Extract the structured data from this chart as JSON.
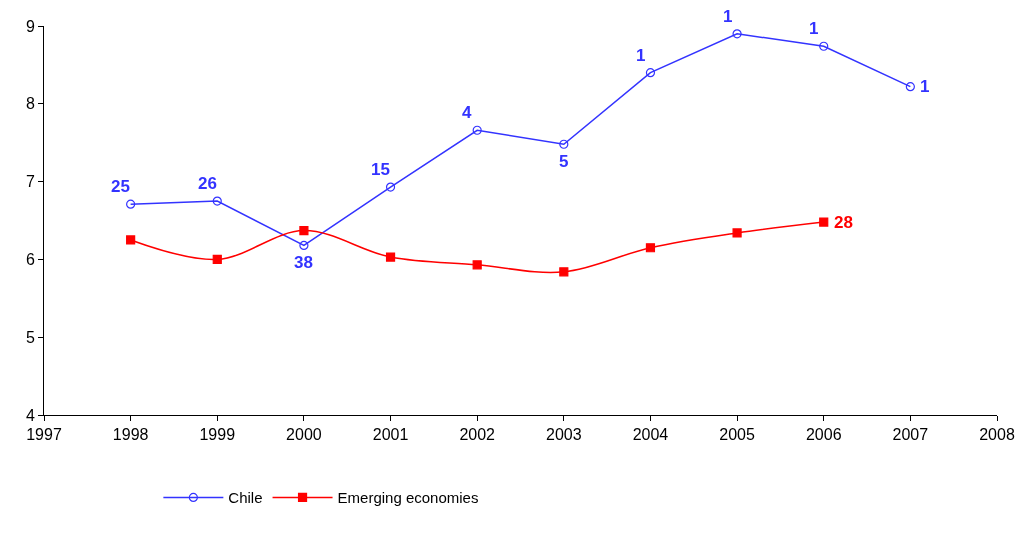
{
  "chart_data": {
    "type": "line",
    "x": [
      1998,
      1999,
      2000,
      2001,
      2002,
      2003,
      2004,
      2005,
      2006,
      2007
    ],
    "series": [
      {
        "name": "Chile",
        "color": "#3333ff",
        "marker": "circle",
        "values": [
          6.71,
          6.75,
          6.18,
          6.93,
          7.66,
          7.48,
          8.4,
          8.9,
          8.74,
          8.22
        ]
      },
      {
        "name": "Emerging economies",
        "color": "#ff0000",
        "marker": "square",
        "values": [
          6.25,
          6.0,
          6.37,
          6.03,
          5.93,
          5.84,
          6.15,
          6.34,
          6.48,
          null
        ]
      }
    ],
    "annotations": [
      {
        "text": "25",
        "x": 1998,
        "y": 6.71
      },
      {
        "text": "26",
        "x": 1999,
        "y": 6.75
      },
      {
        "text": "38",
        "x": 2000,
        "y": 6.18
      },
      {
        "text": "15",
        "x": 2001,
        "y": 6.93
      },
      {
        "text": "4",
        "x": 2002,
        "y": 7.66
      },
      {
        "text": "5",
        "x": 2003,
        "y": 7.48
      },
      {
        "text": "1",
        "x": 2004,
        "y": 8.4
      },
      {
        "text": "1",
        "x": 2005,
        "y": 8.9
      },
      {
        "text": "1",
        "x": 2006,
        "y": 8.74
      },
      {
        "text": "1",
        "x": 2007,
        "y": 8.22
      },
      {
        "text": "28",
        "x": 2006,
        "y": 6.48
      }
    ],
    "xlim": [
      1997,
      2008
    ],
    "xticks": [
      1997,
      1998,
      1999,
      2000,
      2001,
      2002,
      2003,
      2004,
      2005,
      2006,
      2007,
      2008
    ],
    "ylim": [
      4,
      9
    ],
    "yticks": [
      4,
      5,
      6,
      7,
      8,
      9
    ],
    "grid": false,
    "legend": "bottom"
  }
}
